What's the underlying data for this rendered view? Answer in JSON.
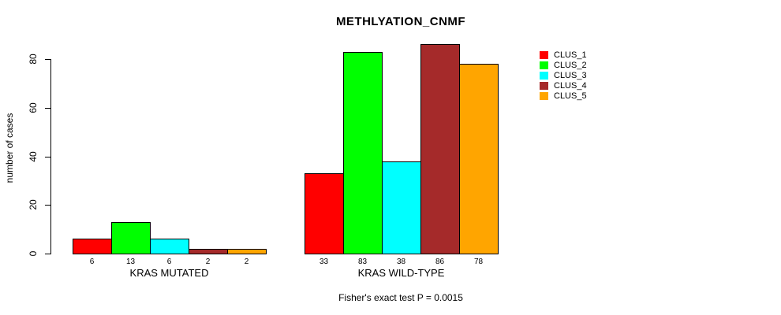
{
  "chart_data": {
    "type": "bar",
    "title": "METHLYATION_CNMF",
    "ylabel": "number of cases",
    "xlabel": "",
    "caption": "Fisher's exact test P = 0.0015",
    "categories": [
      "KRAS MUTATED",
      "KRAS WILD-TYPE"
    ],
    "series": [
      {
        "name": "CLUS_1",
        "color": "#ff0000",
        "values": [
          6,
          33
        ]
      },
      {
        "name": "CLUS_2",
        "color": "#00ff00",
        "values": [
          13,
          83
        ]
      },
      {
        "name": "CLUS_3",
        "color": "#00ffff",
        "values": [
          6,
          38
        ]
      },
      {
        "name": "CLUS_4",
        "color": "#a52a2a",
        "values": [
          2,
          86
        ]
      },
      {
        "name": "CLUS_5",
        "color": "#ffa500",
        "values": [
          2,
          78
        ]
      }
    ],
    "bar_value_labels": [
      [
        "6",
        "13",
        "6",
        "2",
        "2"
      ],
      [
        "33",
        "83",
        "38",
        "86",
        "78"
      ]
    ],
    "yticks": [
      "0",
      "20",
      "40",
      "60",
      "80"
    ],
    "ylim": [
      0,
      80
    ],
    "grid": false,
    "legend_position": "right-outside",
    "bar_border_color": "#000000",
    "axis_color": "#000000",
    "background_color": "#ffffff"
  }
}
